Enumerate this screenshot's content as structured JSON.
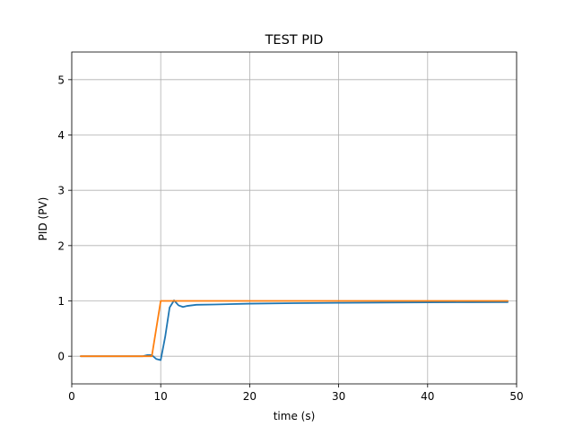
{
  "chart_data": {
    "type": "line",
    "title": "TEST PID",
    "xlabel": "time (s)",
    "ylabel": "PID (PV)",
    "xlim": [
      0,
      50
    ],
    "ylim": [
      -0.5,
      5.5
    ],
    "xticks": [
      0,
      10,
      20,
      30,
      40,
      50
    ],
    "yticks": [
      0,
      1,
      2,
      3,
      4,
      5
    ],
    "xtick_labels": [
      "0",
      "10",
      "20",
      "30",
      "40",
      "50"
    ],
    "ytick_labels": [
      "0",
      "1",
      "2",
      "3",
      "4",
      "5"
    ],
    "grid": true,
    "series": [
      {
        "color": "#1f77b4",
        "x": [
          1,
          7,
          8,
          8.5,
          9,
          9.5,
          10,
          10.5,
          11,
          11.5,
          12,
          12.5,
          13,
          14,
          16,
          20,
          25,
          30,
          35,
          40,
          45,
          49
        ],
        "y": [
          0,
          0,
          0,
          0.02,
          0.02,
          -0.05,
          -0.07,
          0.35,
          0.88,
          1.01,
          0.92,
          0.89,
          0.91,
          0.93,
          0.935,
          0.95,
          0.96,
          0.965,
          0.97,
          0.975,
          0.977,
          0.978
        ]
      },
      {
        "color": "#ff7f0e",
        "x": [
          1,
          8,
          9,
          10,
          11,
          11.5,
          12,
          49
        ],
        "y": [
          0,
          0,
          0,
          1,
          1,
          1,
          1,
          1
        ]
      }
    ]
  }
}
